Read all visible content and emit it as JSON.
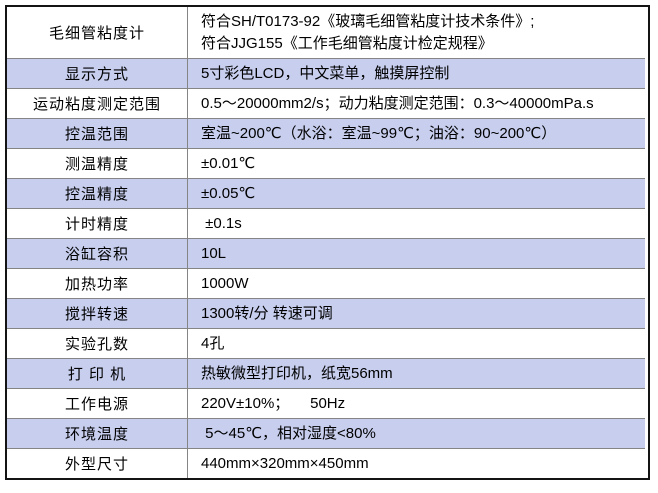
{
  "table": {
    "colors": {
      "alt_row_bg": "#c7ceee",
      "grid_line": "#858585",
      "outer_border": "#141414",
      "text": "#000000"
    },
    "rows": [
      {
        "label": "毛细管粘度计",
        "value": "符合SH/T0173-92《玻璃毛细管粘度计技术条件》;",
        "value2": "符合JJG155《工作毛细管粘度计检定规程》"
      },
      {
        "label": "显示方式",
        "value": "5寸彩色LCD，中文菜单，触摸屏控制"
      },
      {
        "label": "运动粘度测定范围",
        "value": "0.5～20000mm2/s；动力粘度测定范围：0.3～40000mPa.s"
      },
      {
        "label": "控温范围",
        "value": "室温~200℃（水浴：室温~99℃；油浴：90~200℃）"
      },
      {
        "label": "测温精度",
        "value": "±0.01℃"
      },
      {
        "label": "控温精度",
        "value": "±0.05℃"
      },
      {
        "label": "计时精度",
        "value": " ±0.1s"
      },
      {
        "label": "浴缸容积",
        "value": "10L"
      },
      {
        "label": "加热功率",
        "value": "1000W"
      },
      {
        "label": "搅拌转速",
        "value": "1300转/分 转速可调"
      },
      {
        "label": "实验孔数",
        "value": "4孔"
      },
      {
        "label": "打 印 机",
        "value": "热敏微型打印机，纸宽56mm"
      },
      {
        "label": "工作电源",
        "value": "220V±10%；     50Hz"
      },
      {
        "label": "环境温度",
        "value": " 5～45℃，相对湿度<80%"
      },
      {
        "label": "外型尺寸",
        "value": "440mm×320mm×450mm"
      }
    ]
  }
}
